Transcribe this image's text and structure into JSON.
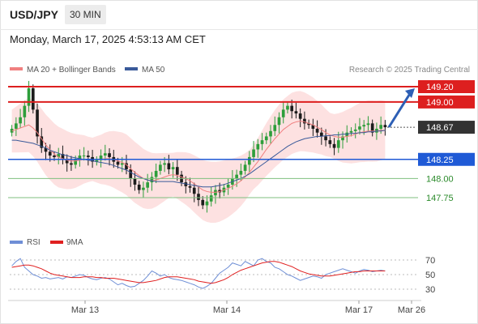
{
  "header": {
    "symbol": "USD/JPY",
    "timeframe": "30 MIN",
    "datetime": "Monday, March 17, 2025 4:53:13 AM CET"
  },
  "legend": {
    "ma20": "MA 20 + Bollinger Bands",
    "ma50": "MA 50",
    "copyright": "Research © 2025 Trading Central",
    "rsi": "RSI",
    "rsi_ma": "9MA"
  },
  "colors": {
    "resistance": "#dd1f1f",
    "support": "#1f5ad6",
    "target": "#2a8a2a",
    "current": "#333333",
    "bullish": "#2e9e3b",
    "bearish": "#1c1c1c",
    "ma20": "#f08080",
    "ma50": "#3a5a9a",
    "band": "#fde1e1",
    "rsi": "#6f8fd6",
    "rsi_ma": "#e02020",
    "forecast_arrow": "#2d5fb5"
  },
  "chart_data": [
    {
      "type": "candlestick",
      "title": "",
      "ylim": [
        147.5,
        149.3
      ],
      "xrange": [
        "Mar 12",
        "Mar 26"
      ],
      "x_ticks": [
        "Mar 13",
        "Mar 14",
        "Mar 17",
        "Mar 26"
      ],
      "levels": [
        {
          "label": "149.20",
          "value": 149.2,
          "kind": "resistance"
        },
        {
          "label": "149.00",
          "value": 149.0,
          "kind": "resistance"
        },
        {
          "label": "148.67",
          "value": 148.67,
          "kind": "current"
        },
        {
          "label": "148.25",
          "value": 148.25,
          "kind": "support"
        },
        {
          "label": "148.00",
          "value": 148.0,
          "kind": "target"
        },
        {
          "label": "147.75",
          "value": 147.75,
          "kind": "target"
        }
      ],
      "closes": [
        148.65,
        148.72,
        148.8,
        148.95,
        149.18,
        148.9,
        148.55,
        148.4,
        148.35,
        148.3,
        148.28,
        148.32,
        148.25,
        148.2,
        148.18,
        148.25,
        148.3,
        148.3,
        148.28,
        148.22,
        148.24,
        148.3,
        148.33,
        148.28,
        148.22,
        148.18,
        148.2,
        148.12,
        148.0,
        147.92,
        147.85,
        147.88,
        147.95,
        148.02,
        148.1,
        148.18,
        148.2,
        148.12,
        148.15,
        148.05,
        147.95,
        147.9,
        147.88,
        147.8,
        147.72,
        147.65,
        147.7,
        147.78,
        147.85,
        147.82,
        147.88,
        147.92,
        148.0,
        148.05,
        148.1,
        148.18,
        148.28,
        148.38,
        148.45,
        148.5,
        148.55,
        148.62,
        148.7,
        148.8,
        148.9,
        148.95,
        148.88,
        148.85,
        148.78,
        148.72,
        148.7,
        148.65,
        148.6,
        148.55,
        148.5,
        148.45,
        148.4,
        148.5,
        148.55,
        148.6,
        148.62,
        148.64,
        148.68,
        148.7,
        148.72,
        148.6,
        148.65,
        148.7,
        148.67
      ],
      "ma20": [
        148.62,
        148.64,
        148.66,
        148.68,
        148.7,
        148.66,
        148.6,
        148.52,
        148.44,
        148.38,
        148.32,
        148.28,
        148.26,
        148.24,
        148.23,
        148.23,
        148.24,
        148.25,
        148.25,
        148.25,
        148.25,
        148.25,
        148.26,
        148.26,
        148.25,
        148.23,
        148.21,
        148.18,
        148.13,
        148.08,
        148.04,
        148.0,
        147.98,
        147.97,
        147.98,
        148.0,
        148.02,
        148.04,
        148.05,
        148.04,
        148.02,
        148.0,
        147.97,
        147.93,
        147.89,
        147.85,
        147.83,
        147.82,
        147.82,
        147.83,
        147.85,
        147.87,
        147.9,
        147.93,
        147.97,
        148.02,
        148.08,
        148.15,
        148.22,
        148.3,
        148.38,
        148.45,
        148.52,
        148.58,
        148.64,
        148.68,
        148.72,
        148.74,
        148.75,
        148.74,
        148.72,
        148.7,
        148.67,
        148.64,
        148.6,
        148.57,
        148.55,
        148.54,
        148.54,
        148.55,
        148.56,
        148.58,
        148.6,
        148.61,
        148.62,
        148.62,
        148.62,
        148.63,
        148.63
      ],
      "ma50": [
        148.5,
        148.5,
        148.49,
        148.48,
        148.47,
        148.46,
        148.44,
        148.42,
        148.4,
        148.37,
        148.35,
        148.33,
        148.31,
        148.3,
        148.28,
        148.27,
        148.26,
        148.25,
        148.24,
        148.23,
        148.22,
        148.21,
        148.2,
        148.19,
        148.17,
        148.15,
        148.13,
        148.11,
        148.08,
        148.05,
        148.02,
        148.0,
        147.98,
        147.97,
        147.96,
        147.96,
        147.96,
        147.96,
        147.96,
        147.95,
        147.94,
        147.93,
        147.92,
        147.91,
        147.9,
        147.89,
        147.89,
        147.89,
        147.9,
        147.91,
        147.92,
        147.94,
        147.96,
        147.98,
        148.0,
        148.03,
        148.06,
        148.1,
        148.14,
        148.18,
        148.22,
        148.26,
        148.3,
        148.34,
        148.38,
        148.42,
        148.45,
        148.48,
        148.5,
        148.52,
        148.53,
        148.54,
        148.55,
        148.55,
        148.56,
        148.56,
        148.57,
        148.57,
        148.58,
        148.58,
        148.59,
        148.59,
        148.6,
        148.6,
        148.61,
        148.61,
        148.62,
        148.62,
        148.63
      ]
    },
    {
      "type": "line",
      "title": "",
      "ylim": [
        20,
        80
      ],
      "y_ticks": [
        70,
        50,
        30
      ],
      "series": [
        {
          "name": "RSI",
          "values": [
            62,
            68,
            72,
            60,
            55,
            50,
            48,
            45,
            46,
            44,
            45,
            46,
            44,
            47,
            46,
            48,
            50,
            49,
            46,
            44,
            43,
            45,
            46,
            44,
            40,
            36,
            38,
            35,
            33,
            34,
            38,
            42,
            48,
            55,
            52,
            48,
            50,
            46,
            44,
            43,
            42,
            40,
            38,
            36,
            33,
            31,
            34,
            38,
            45,
            52,
            56,
            60,
            66,
            64,
            62,
            68,
            65,
            62,
            70,
            72,
            68,
            66,
            60,
            58,
            54,
            50,
            48,
            45,
            42,
            44,
            46,
            48,
            47,
            45,
            50,
            52,
            54,
            56,
            58,
            56,
            54,
            52,
            55,
            57,
            56,
            54,
            55,
            56,
            55
          ]
        },
        {
          "name": "9MA",
          "values": [
            60,
            61,
            62,
            63,
            63,
            62,
            60,
            58,
            55,
            52,
            50,
            49,
            48,
            47,
            46,
            46,
            46,
            47,
            47,
            47,
            46,
            46,
            45,
            45,
            45,
            44,
            43,
            42,
            41,
            40,
            39,
            39,
            40,
            41,
            42,
            44,
            46,
            47,
            47,
            47,
            46,
            45,
            44,
            43,
            41,
            40,
            39,
            38,
            39,
            41,
            43,
            46,
            50,
            53,
            56,
            58,
            60,
            62,
            64,
            66,
            67,
            68,
            68,
            67,
            65,
            63,
            61,
            58,
            55,
            53,
            51,
            50,
            49,
            48,
            48,
            48,
            49,
            50,
            51,
            52,
            53,
            54,
            54,
            55,
            55,
            55,
            55,
            55,
            55
          ]
        }
      ]
    }
  ],
  "axis": {
    "x_ticks": [
      "Mar 13",
      "Mar 14",
      "Mar 17",
      "Mar 26"
    ]
  }
}
